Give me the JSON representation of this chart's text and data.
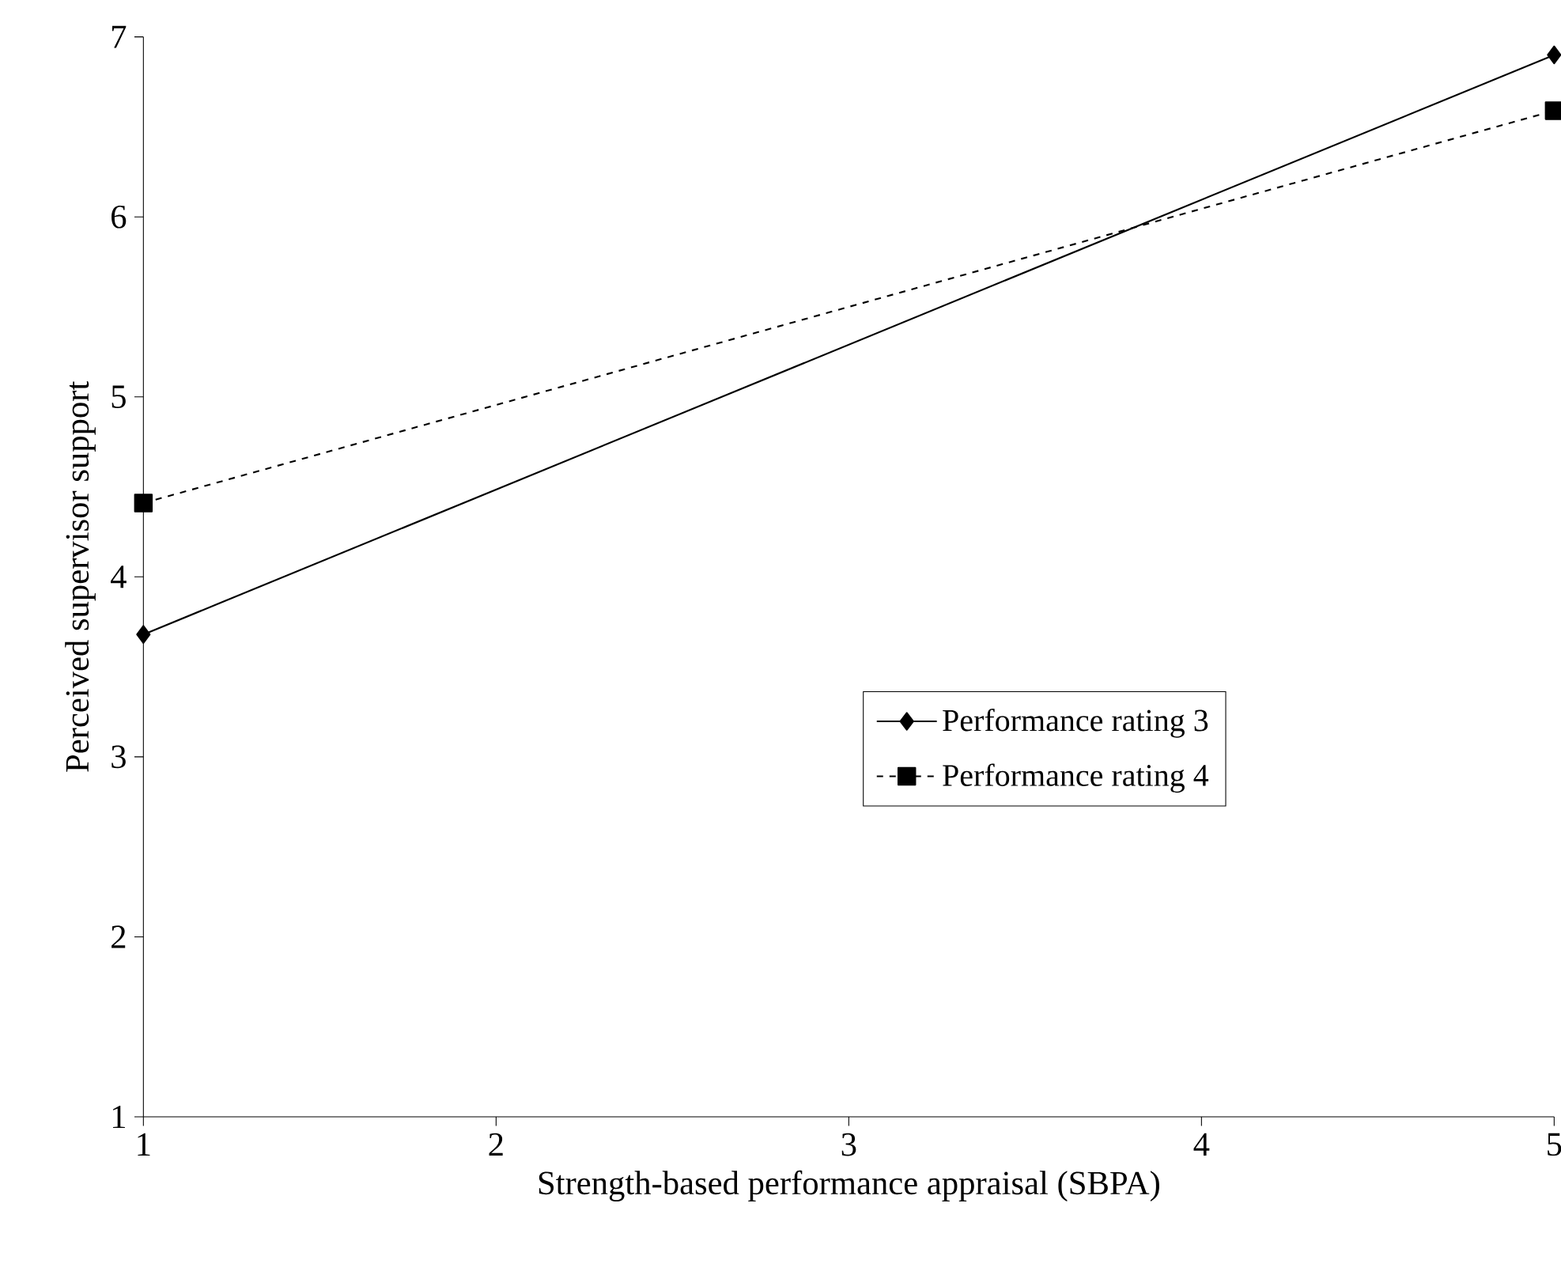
{
  "chart_data": {
    "type": "line",
    "xlabel": "Strength-based performance appraisal (SBPA)",
    "ylabel": "Perceived supervisor support",
    "x": [
      1,
      5
    ],
    "series": [
      {
        "name": "Performance rating 3",
        "color": "#000000",
        "values": [
          3.68,
          6.9
        ],
        "marker": "diamond",
        "line_style": "solid"
      },
      {
        "name": "Performance rating 4",
        "color": "#000000",
        "values": [
          4.41,
          6.59
        ],
        "marker": "square",
        "line_style": "dashed"
      }
    ],
    "xlim": [
      1,
      5
    ],
    "ylim": [
      1,
      7
    ],
    "xticks": [
      1,
      2,
      3,
      4,
      5
    ],
    "yticks": [
      1,
      2,
      3,
      4,
      5,
      6,
      7
    ],
    "grid": false,
    "legend": "right"
  }
}
